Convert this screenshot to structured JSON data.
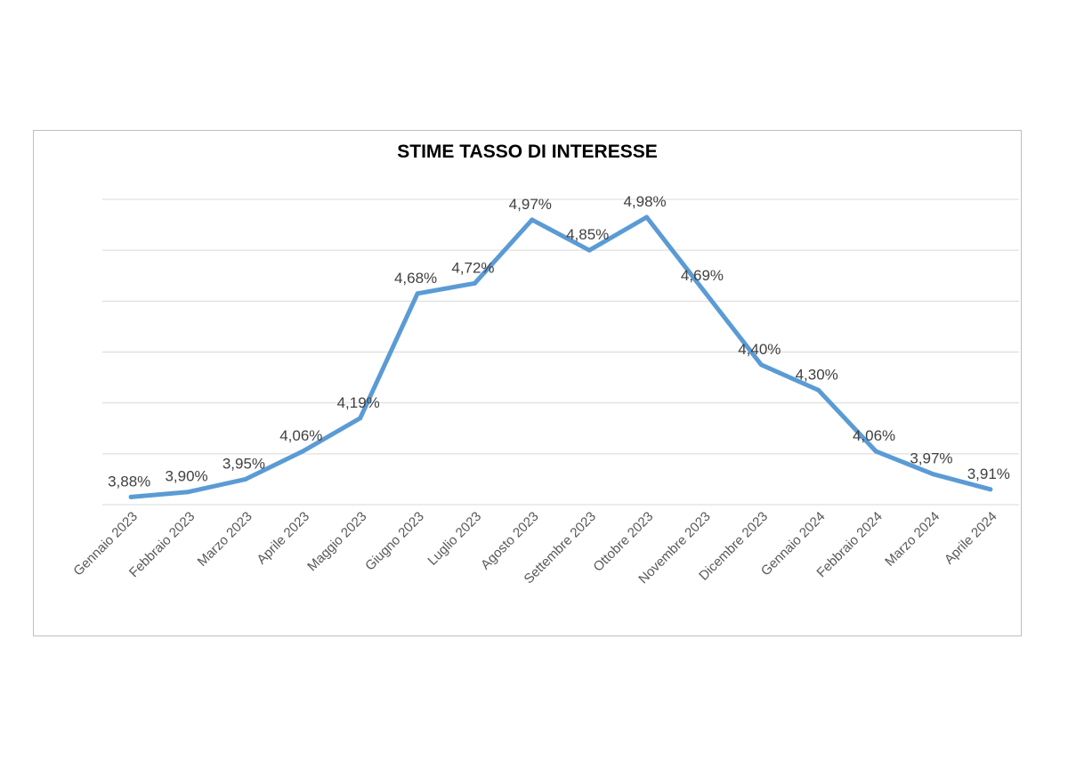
{
  "chart_data": {
    "type": "line",
    "title": "STIME TASSO DI INTERESSE",
    "xlabel": "",
    "ylabel": "",
    "categories": [
      "Gennaio 2023",
      "Febbraio 2023",
      "Marzo 2023",
      "Aprile 2023",
      "Maggio 2023",
      "Giugno 2023",
      "Luglio 2023",
      "Agosto 2023",
      "Settembre 2023",
      "Ottobre 2023",
      "Novembre 2023",
      "Dicembre 2023",
      "Gennaio 2024",
      "Febbraio 2024",
      "Marzo 2024",
      "Aprile 2024"
    ],
    "series": [
      {
        "values": [
          3.88,
          3.9,
          3.95,
          4.06,
          4.19,
          4.68,
          4.72,
          4.97,
          4.85,
          4.98,
          4.69,
          4.4,
          4.3,
          4.06,
          3.97,
          3.91
        ],
        "labels": [
          "3,88%",
          "3,90%",
          "3,95%",
          "4,06%",
          "4,19%",
          "4,68%",
          "4,72%",
          "4,97%",
          "4,85%",
          "4,98%",
          "4,69%",
          "4,40%",
          "4,30%",
          "4,06%",
          "3,97%",
          "3,91%"
        ],
        "color": "#5b9bd5"
      }
    ],
    "ylim": [
      3.85,
      5.05
    ],
    "y_gridlines": [
      3.85,
      4.05,
      4.25,
      4.45,
      4.65,
      4.85,
      5.05
    ],
    "grid": true,
    "legend": "none"
  }
}
